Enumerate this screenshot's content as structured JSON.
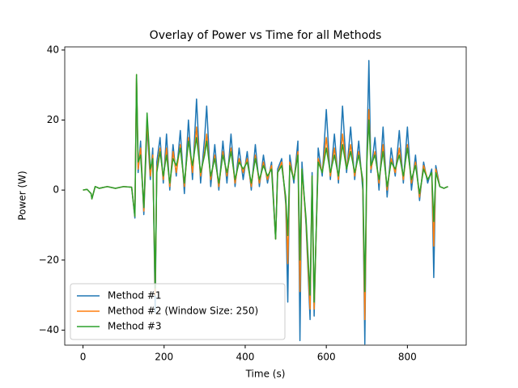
{
  "chart_data": {
    "type": "line",
    "title": "Overlay of Power vs Time for all Methods",
    "xlabel": "Time (s)",
    "ylabel": "Power (W)",
    "x": [
      0,
      10,
      20,
      22,
      30,
      40,
      60,
      80,
      100,
      120,
      128,
      132,
      136,
      142,
      150,
      158,
      166,
      172,
      178,
      182,
      190,
      198,
      206,
      214,
      222,
      230,
      240,
      250,
      260,
      270,
      280,
      290,
      300,
      305,
      315,
      325,
      335,
      345,
      355,
      365,
      375,
      385,
      395,
      405,
      415,
      425,
      435,
      445,
      455,
      465,
      475,
      480,
      490,
      500,
      505,
      510,
      520,
      530,
      535,
      540,
      550,
      560,
      565,
      570,
      580,
      590,
      600,
      610,
      620,
      630,
      640,
      650,
      660,
      670,
      680,
      690,
      695,
      700,
      705,
      710,
      720,
      730,
      740,
      750,
      760,
      770,
      780,
      790,
      800,
      810,
      820,
      830,
      840,
      850,
      860,
      865,
      870,
      880,
      890,
      900
    ],
    "series": [
      {
        "name": "Method #1",
        "color": "#1f77b4",
        "values": [
          0,
          0.2,
          -1,
          -2.5,
          1,
          0.5,
          1,
          0.5,
          1,
          0.8,
          -8,
          32,
          5,
          14,
          -7,
          18,
          3,
          12,
          -35,
          8,
          15,
          2,
          16,
          0,
          13,
          4,
          17,
          -1,
          20,
          3,
          26,
          2,
          15,
          24,
          1,
          13,
          0,
          14,
          2,
          16,
          1,
          12,
          3,
          11,
          0,
          13,
          1,
          10,
          2,
          8,
          -14,
          6,
          9,
          -4,
          -32,
          10,
          2,
          14,
          -43,
          8,
          -10,
          -37,
          5,
          -36,
          12,
          4,
          23,
          3,
          16,
          2,
          24,
          5,
          18,
          3,
          14,
          0,
          -44,
          10,
          37,
          5,
          15,
          0,
          18,
          -2,
          12,
          4,
          17,
          2,
          18,
          0,
          10,
          -3,
          8,
          2,
          6,
          -25,
          7,
          1,
          0.5,
          1
        ]
      },
      {
        "name": "Method #2 (Window Size: 250)",
        "color": "#ff7f0e",
        "values": [
          0,
          0.2,
          -1,
          -2.5,
          1,
          0.5,
          1,
          0.5,
          1,
          0.8,
          -7.5,
          33,
          6,
          12,
          -6,
          20,
          4,
          10,
          -30,
          6,
          12,
          3,
          12,
          1,
          11,
          5,
          13,
          1,
          15,
          5,
          18,
          4,
          11,
          16,
          3,
          10,
          1,
          11,
          4,
          12,
          2,
          9,
          5,
          9,
          1,
          10,
          2,
          8,
          3,
          7,
          -14,
          5,
          8,
          -3,
          -21,
          8,
          3,
          11,
          -29,
          6,
          -9,
          -34,
          4,
          -34,
          9,
          5,
          15,
          4,
          12,
          3,
          16,
          6,
          13,
          4,
          11,
          2,
          -37,
          8,
          23,
          6,
          11,
          2,
          13,
          0,
          9,
          5,
          12,
          3,
          13,
          2,
          8,
          -2,
          7,
          3,
          5,
          -16,
          6,
          1,
          0.5,
          1
        ]
      },
      {
        "name": "Method #3",
        "color": "#2ca02c",
        "values": [
          0,
          0.2,
          -1,
          -2.5,
          1,
          0.5,
          1,
          0.5,
          1,
          0.8,
          -7.5,
          33,
          8,
          10,
          -5,
          22,
          6,
          9,
          -28,
          5,
          11,
          4,
          10,
          2,
          9,
          7,
          12,
          2,
          14,
          7,
          15,
          5,
          10,
          14,
          4,
          9,
          2,
          10,
          5,
          11,
          3,
          8,
          6,
          8,
          2,
          9,
          3,
          7,
          4,
          6,
          -14,
          5,
          7,
          -2,
          -13,
          7,
          3,
          10,
          -20,
          6,
          -8,
          -30,
          4,
          -32,
          8,
          5,
          12,
          5,
          10,
          4,
          13,
          6,
          11,
          5,
          10,
          3,
          -29,
          8,
          20,
          7,
          10,
          3,
          11,
          1,
          8,
          6,
          10,
          4,
          12,
          3,
          7,
          -1,
          6,
          3,
          5,
          -9,
          5,
          1,
          0.5,
          1
        ]
      }
    ],
    "xlim": [
      -45,
      945
    ],
    "ylim": [
      -44.3,
      40.9
    ],
    "xticks": [
      0,
      200,
      400,
      600,
      800
    ],
    "yticks": [
      {
        "value": -40,
        "label": "−40"
      },
      {
        "value": -20,
        "label": "−20"
      },
      0,
      20,
      40
    ],
    "legend": "lower left"
  }
}
